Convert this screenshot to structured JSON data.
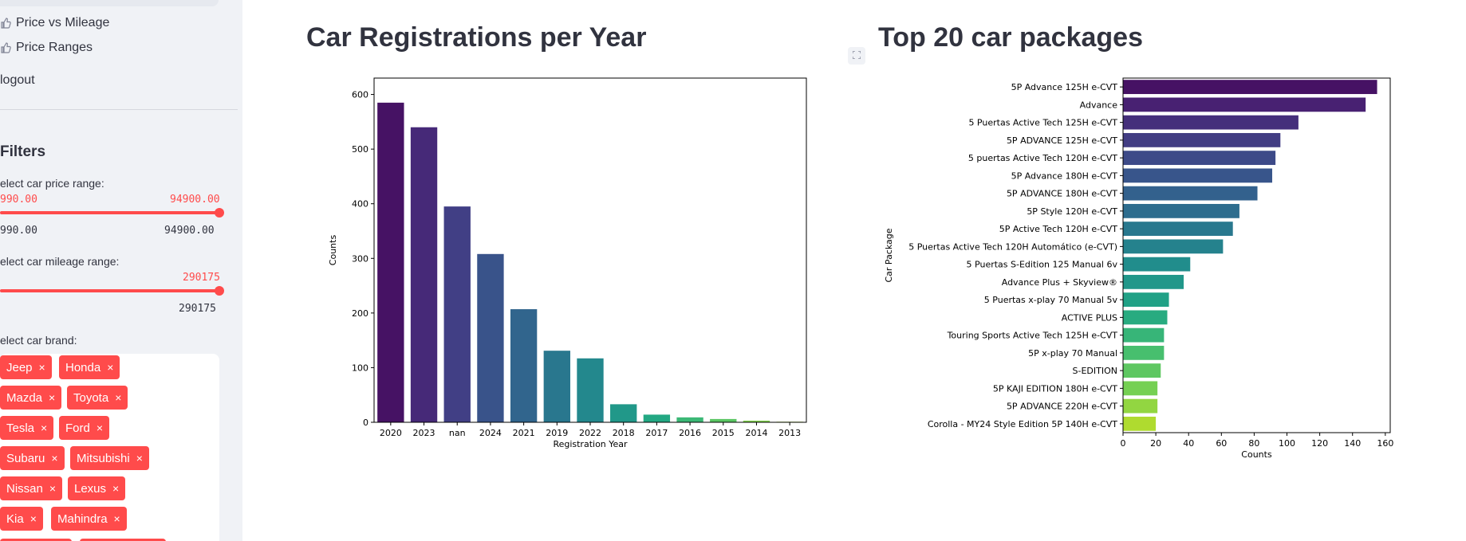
{
  "sidebar": {
    "nav_items": [
      {
        "label": "Price vs Mileage",
        "icon": "thumbs-up-icon"
      },
      {
        "label": "Price Ranges",
        "icon": "thumbs-up-icon"
      },
      {
        "label": "logout"
      }
    ],
    "filters_heading": "Filters",
    "price_slider": {
      "label": "elect car price range:",
      "min_value": "990.00",
      "max_value": "94900.00",
      "range_min": "990.00",
      "range_max": "94900.00"
    },
    "mileage_slider": {
      "label": "elect car mileage range:",
      "max_value": "290175",
      "range_max": "290175"
    },
    "brand_select": {
      "label": "elect car brand:",
      "tags": [
        "Jeep",
        "Honda",
        "Mazda",
        "Toyota",
        "Tesla",
        "Ford",
        "Subaru",
        "Mitsubishi",
        "Nissan",
        "Lexus",
        "Kia",
        "Mahindra"
      ],
      "remove_glyph": "×"
    }
  },
  "main": {
    "left_title": "Car Registrations per Year",
    "right_title": "Top 20 car packages"
  },
  "chart_data": [
    {
      "type": "bar",
      "title": "",
      "xlabel": "Registration Year",
      "ylabel": "Counts",
      "categories": [
        "2020",
        "2023",
        "nan",
        "2024",
        "2021",
        "2019",
        "2022",
        "2018",
        "2017",
        "2016",
        "2015",
        "2014",
        "2013"
      ],
      "values": [
        585,
        540,
        395,
        308,
        207,
        131,
        117,
        33,
        14,
        9,
        6,
        3,
        1
      ],
      "ylim": [
        0,
        630
      ],
      "yticks": [
        0,
        100,
        200,
        300,
        400,
        500,
        600
      ],
      "palette": "viridis",
      "grid": false
    },
    {
      "type": "bar",
      "orientation": "horizontal",
      "title": "",
      "xlabel": "Counts",
      "ylabel": "Car Package",
      "categories": [
        "5P Advance 125H e-CVT",
        "Advance",
        "5 Puertas Active Tech 125H e-CVT",
        "5P ADVANCE 125H e-CVT",
        "5 puertas Active Tech 120H e-CVT",
        "5P Advance 180H e-CVT",
        "5P ADVANCE 180H e-CVT",
        "5P Style 120H e-CVT",
        "5P Active Tech 120H e-CVT",
        "5 Puertas Active Tech 120H Automático (e-CVT)",
        "5 Puertas S-Edition 125 Manual 6v",
        "Advance Plus + Skyview®",
        "5 Puertas x-play 70 Manual 5v",
        "ACTIVE PLUS",
        "Touring Sports Active Tech 125H e-CVT",
        "5P x-play 70 Manual",
        "S-EDITION",
        "5P KAJI EDITION 180H e-CVT",
        "5P ADVANCE 220H e-CVT",
        "Corolla - MY24 Style Edition 5P 140H e-CVT"
      ],
      "values": [
        155,
        148,
        107,
        96,
        93,
        91,
        82,
        71,
        67,
        61,
        41,
        37,
        28,
        27,
        25,
        25,
        23,
        21,
        21,
        20
      ],
      "xlim": [
        0,
        163
      ],
      "xticks": [
        0,
        20,
        40,
        60,
        80,
        100,
        120,
        140,
        160
      ],
      "palette": "viridis",
      "grid": false
    }
  ]
}
